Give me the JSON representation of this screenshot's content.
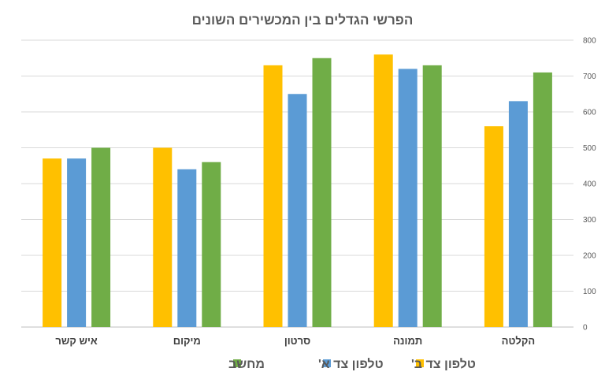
{
  "chart_data": {
    "type": "bar",
    "title": "הפרשי הגדלים בין המכשירים השונים",
    "categories": [
      "הקלטה",
      "תמונה",
      "סרטון",
      "מיקום",
      "איש קשר"
    ],
    "series": [
      {
        "name": "טלפון צד ב'",
        "color": "#FFC000",
        "values": [
          560,
          760,
          730,
          500,
          470
        ]
      },
      {
        "name": "טלפון צד א'",
        "color": "#5B9BD5",
        "values": [
          630,
          720,
          650,
          440,
          470
        ]
      },
      {
        "name": "מחשב",
        "color": "#70AD47",
        "values": [
          710,
          730,
          750,
          460,
          500
        ]
      }
    ],
    "ylim": [
      0,
      800
    ],
    "yticks": [
      0,
      100,
      200,
      300,
      400,
      500,
      600,
      700,
      800
    ],
    "y_axis_side": "right",
    "category_order": "right-to-left",
    "grid": true,
    "legend_position": "bottom"
  }
}
